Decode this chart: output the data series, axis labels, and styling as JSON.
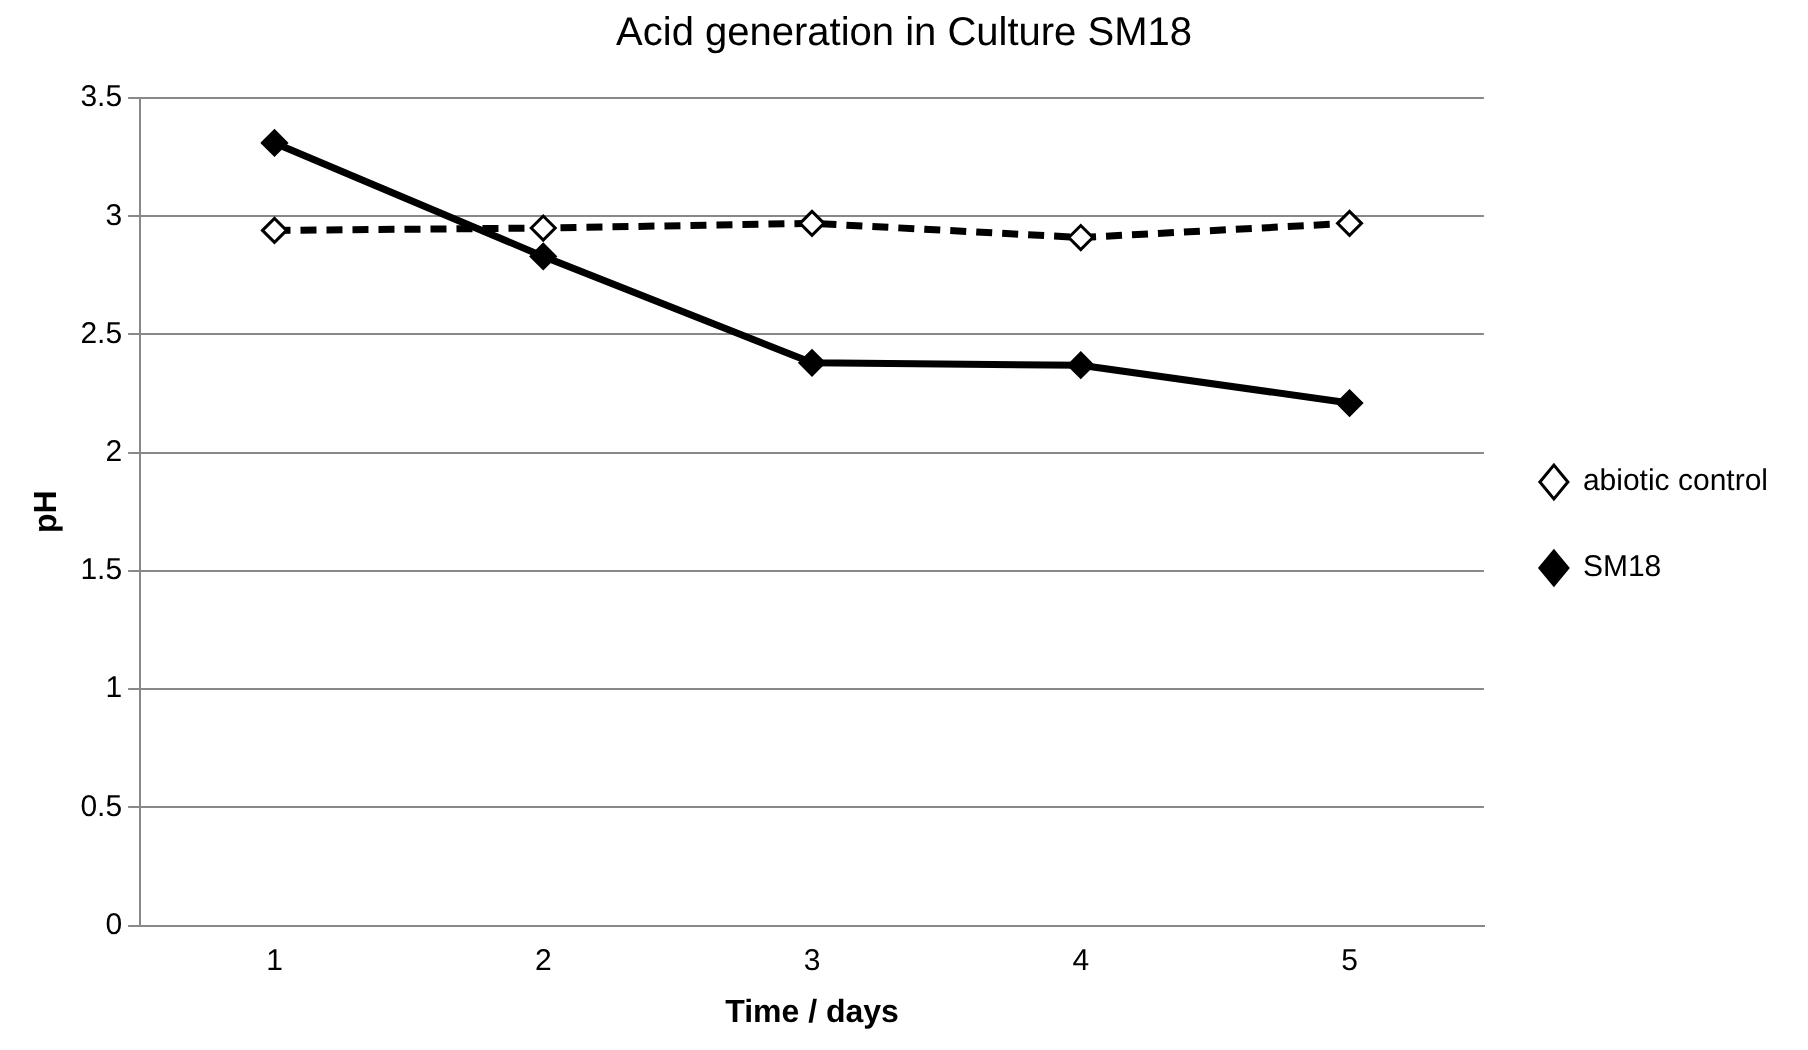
{
  "chart_data": {
    "type": "line",
    "title": "Acid generation in Culture SM18",
    "xlabel": "Time / days",
    "ylabel": "pH",
    "categories": [
      "1",
      "2",
      "3",
      "4",
      "5"
    ],
    "series": [
      {
        "name": "abiotic control",
        "color": "#000000",
        "line_style": "dashed",
        "values": [
          2.94,
          2.95,
          2.97,
          2.91,
          2.97
        ]
      },
      {
        "name": "SM18",
        "color": "#000000",
        "line_style": "solid",
        "values": [
          3.31,
          2.83,
          2.38,
          2.37,
          2.21
        ]
      }
    ],
    "ylim": [
      0,
      3.5
    ],
    "yticks": [
      0,
      0.5,
      1,
      1.5,
      2,
      2.5,
      3,
      3.5
    ],
    "grid": "y",
    "legend": "right",
    "marker": "diamond"
  }
}
